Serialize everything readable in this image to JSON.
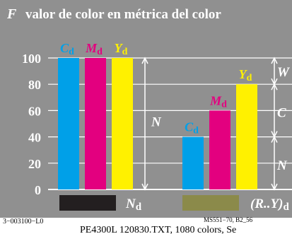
{
  "chart_data": {
    "type": "bar",
    "title": "F  valor de color en métrica del color",
    "title_letter": "F",
    "title_text": "valor de color en métrica del color",
    "ylim": [
      0,
      100
    ],
    "y_ticks": [
      0,
      20,
      40,
      60,
      80,
      100
    ],
    "grid": true,
    "groups": [
      {
        "name": "Nd",
        "name_main": "N",
        "name_sub": "d",
        "swatch_color": "#231f20",
        "bars": [
          {
            "label_main": "C",
            "label_sub": "d",
            "value": 100,
            "color": "#00a0e8"
          },
          {
            "label_main": "M",
            "label_sub": "d",
            "value": 100,
            "color": "#e3007f"
          },
          {
            "label_main": "Y",
            "label_sub": "d",
            "value": 100,
            "color": "#fff100"
          }
        ]
      },
      {
        "name": "(R..Y)d",
        "name_main": "(R..Y)",
        "name_sub": "d",
        "swatch_color": "#8b8a4a",
        "bars": [
          {
            "label_main": "C",
            "label_sub": "d",
            "value": 40,
            "color": "#00a0e8"
          },
          {
            "label_main": "M",
            "label_sub": "d",
            "value": 60,
            "color": "#e3007f"
          },
          {
            "label_main": "Y",
            "label_sub": "d",
            "value": 80,
            "color": "#fff100"
          }
        ]
      }
    ],
    "annotations": {
      "N_left": "N",
      "N_right": "N",
      "W": "W",
      "C": "C"
    }
  },
  "colors": {
    "background": "#909090",
    "title_bg": "#909090",
    "cyan": "#00a0e8",
    "magenta": "#e3007f",
    "yellow": "#fff100",
    "white": "#ffffff"
  },
  "footer": {
    "left": "3−003100−L0",
    "right_top": "MS551−70, B2_56",
    "bottom": "PE4300L  120830.TXT, 1080 colors, Se"
  }
}
